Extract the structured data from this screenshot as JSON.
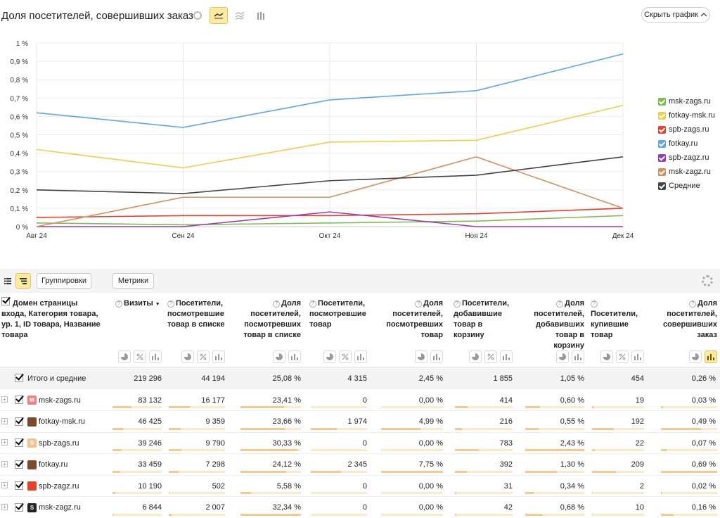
{
  "header": {
    "title": "Доля посетителей, совершивших заказ",
    "hide_chart_label": "Скрыть график"
  },
  "chart_data": {
    "type": "line",
    "categories": [
      "Авг 24",
      "Сен 24",
      "Окт 24",
      "Ноя 24",
      "Дек 24"
    ],
    "y_ticks": [
      "0 %",
      "0,1 %",
      "0,2 %",
      "0,3 %",
      "0,4 %",
      "0,5 %",
      "0,6 %",
      "0,7 %",
      "0,8 %",
      "0,9 %",
      "1 %"
    ],
    "ylim": [
      0,
      1
    ],
    "grid": true,
    "legend_position": "right",
    "series": [
      {
        "name": "msk-zags.ru",
        "color": "#7cc04b",
        "values": [
          0.02,
          0.01,
          0.02,
          0.03,
          0.06
        ]
      },
      {
        "name": "fotkay-msk.ru",
        "color": "#f4cd45",
        "values": [
          0.42,
          0.32,
          0.46,
          0.47,
          0.66
        ]
      },
      {
        "name": "spb-zags.ru",
        "color": "#e8402a",
        "values": [
          0.05,
          0.06,
          0.06,
          0.07,
          0.1
        ]
      },
      {
        "name": "fotkay.ru",
        "color": "#5ea7e6",
        "values": [
          0.62,
          0.54,
          0.69,
          0.74,
          0.94
        ]
      },
      {
        "name": "spb-zagz.ru",
        "color": "#9b3cb7",
        "values": [
          0.0,
          0.0,
          0.08,
          0.0,
          0.0
        ]
      },
      {
        "name": "msk-zagz.ru",
        "color": "#d3905e",
        "values": [
          0.0,
          0.16,
          0.16,
          0.38,
          0.1
        ]
      },
      {
        "name": "Средние",
        "color": "#444444",
        "values": [
          0.2,
          0.18,
          0.25,
          0.28,
          0.38
        ]
      }
    ]
  },
  "toolbar": {
    "groupings_label": "Группировки",
    "metrics_label": "Метрики"
  },
  "table": {
    "dim_header": "Домен страницы входа, Категория товара, ур. 1, ID товара, Название товара",
    "columns": [
      "Визиты",
      "Посетители, посмотревшие товар в списке",
      "Доля посетителей, посмотревших товар в списке",
      "Посетители, посмотревшие товар",
      "Доля посетителей, посмотревших товар",
      "Посетители, добавившие товар в корзину",
      "Доля посетителей, добавивших товар в корзину",
      "Посетители, купившие товар",
      "Доля посетителей, совершивших заказ"
    ],
    "sort_arrow": "▼",
    "total": {
      "label": "Итого и средние",
      "values": [
        "219 296",
        "44 194",
        "25,08 %",
        "4 315",
        "2,45 %",
        "1 855",
        "1,05 %",
        "454",
        "0,26 %"
      ]
    },
    "rows": [
      {
        "name": "msk-zags.ru",
        "fav_text": "M",
        "fav_color": "#f08080",
        "values": [
          "83 132",
          "16 177",
          "23,41 %",
          "0",
          "0,00 %",
          "414",
          "0,60 %",
          "19",
          "0,03 %"
        ],
        "bars": [
          0.38,
          0.37,
          0.72,
          0,
          0,
          0.22,
          0.25,
          0.04,
          0.04
        ]
      },
      {
        "name": "fotkay-msk.ru",
        "fav_text": "",
        "fav_color": "#7a4a2a",
        "values": [
          "46 425",
          "9 359",
          "23,66 %",
          "1 974",
          "4,99 %",
          "216",
          "0,55 %",
          "192",
          "0,49 %"
        ],
        "bars": [
          0.21,
          0.21,
          0.73,
          0.46,
          0.64,
          0.12,
          0.23,
          0.42,
          0.71
        ]
      },
      {
        "name": "spb-zags.ru",
        "fav_text": "S",
        "fav_color": "#f2c28a",
        "values": [
          "39 246",
          "9 790",
          "30,33 %",
          "0",
          "0,00 %",
          "783",
          "2,43 %",
          "22",
          "0,07 %"
        ],
        "bars": [
          0.18,
          0.22,
          0.94,
          0,
          0,
          0.42,
          1.0,
          0.05,
          0.1
        ]
      },
      {
        "name": "fotkay.ru",
        "fav_text": "",
        "fav_color": "#7a4a2a",
        "values": [
          "33 459",
          "7 298",
          "24,12 %",
          "2 345",
          "7,75 %",
          "392",
          "1,30 %",
          "209",
          "0,69 %"
        ],
        "bars": [
          0.15,
          0.17,
          0.75,
          0.54,
          1.0,
          0.21,
          0.54,
          0.46,
          1.0
        ]
      },
      {
        "name": "spb-zagz.ru",
        "fav_text": "",
        "fav_color": "#e8402a",
        "values": [
          "10 190",
          "502",
          "5,58 %",
          "0",
          "0,00 %",
          "31",
          "0,34 %",
          "2",
          "0,02 %"
        ],
        "bars": [
          0.05,
          0.01,
          0.17,
          0,
          0,
          0.02,
          0.14,
          0.01,
          0.03
        ]
      },
      {
        "name": "msk-zagz.ru",
        "fav_text": "S",
        "fav_color": "#222222",
        "values": [
          "6 844",
          "2 007",
          "32,34 %",
          "0",
          "0,00 %",
          "42",
          "0,68 %",
          "10",
          "0,16 %"
        ],
        "bars": [
          0.03,
          0.05,
          1.0,
          0,
          0,
          0.02,
          0.28,
          0.02,
          0.23
        ]
      }
    ]
  }
}
